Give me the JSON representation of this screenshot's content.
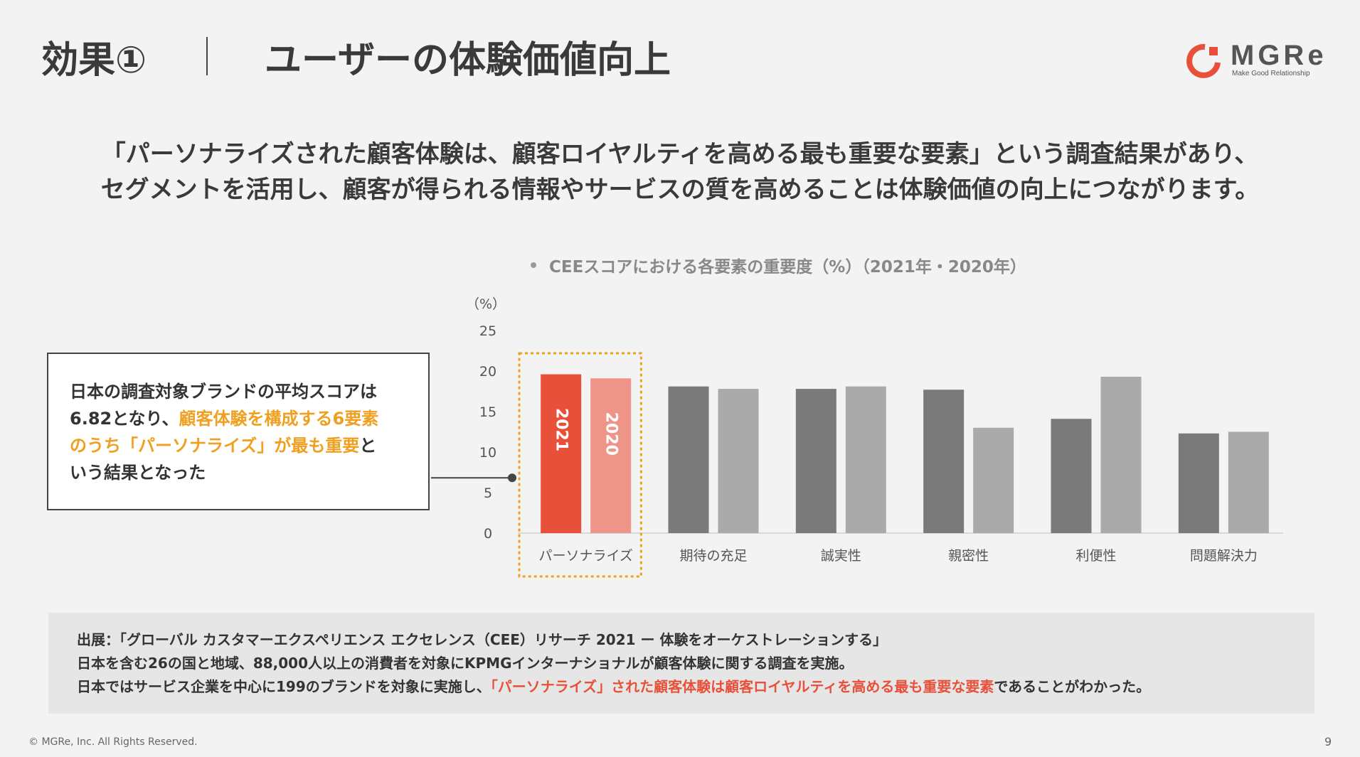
{
  "slide": {
    "title_prefix": "効果①",
    "title_main": "ユーザーの体験価値向上",
    "logo_text": "MGRe",
    "logo_sub": "Make Good Relationship",
    "lead_line1": "「パーソナライズされた顧客体験は、顧客ロイヤルティを高める最も重要な要素」という調査結果があり、",
    "lead_line2": "セグメントを活用し、顧客が得られる情報やサービスの質を高めることは体験価値の向上につながります。",
    "callout_1": "日本の調査対象ブランドの平均スコアは",
    "callout_2a": "6.82となり、",
    "callout_2b": "顧客体験を構成する6要素",
    "callout_3a": "のうち「パーソナライズ」が最も重要",
    "callout_3b": "と",
    "callout_4": "いう結果となった",
    "source_1": "出展：「グローバル カスタマーエクスペリエンス エクセレンス（CEE）リサーチ 2021 ー 体験をオーケストレーションする」",
    "source_2": "日本を含む26の国と地域、88,000人以上の消費者を対象にKPMGインターナショナルが顧客体験に関する調査を実施。",
    "source_3a": "日本ではサービス企業を中心に199のブランドを対象に実施し、",
    "source_3b": "「パーソナライズ」された顧客体験は顧客ロイヤルティを高める最も重要な要素",
    "source_3c": "であることがわかった。",
    "footer": "© MGRe, Inc. All Rights Reserved.",
    "page_number": "9"
  },
  "colors": {
    "brand_red": "#e8503a",
    "highlight_orange": "#f0a020",
    "bar_2021_highlight": "#e8503a",
    "bar_2020_highlight": "#ee9488",
    "bar_2021": "#7a7a7a",
    "bar_2020": "#aaaaaa"
  },
  "chart_data": {
    "type": "bar",
    "title": "CEEスコアにおける各要素の重要度（%）（2021年・2020年）",
    "ylabel": "（%）",
    "ylim": [
      0,
      25
    ],
    "yticks": [
      0,
      5,
      10,
      15,
      20,
      25
    ],
    "categories": [
      "パーソナライズ",
      "期待の充足",
      "誠実性",
      "親密性",
      "利便性",
      "問題解決力"
    ],
    "series": [
      {
        "name": "2021",
        "values": [
          19.6,
          18.1,
          17.8,
          17.7,
          14.1,
          12.3
        ]
      },
      {
        "name": "2020",
        "values": [
          19.1,
          17.8,
          18.1,
          13.0,
          19.3,
          12.5
        ]
      }
    ],
    "highlight_category": "パーソナライズ",
    "average_marker": 6.82,
    "grid": false
  }
}
